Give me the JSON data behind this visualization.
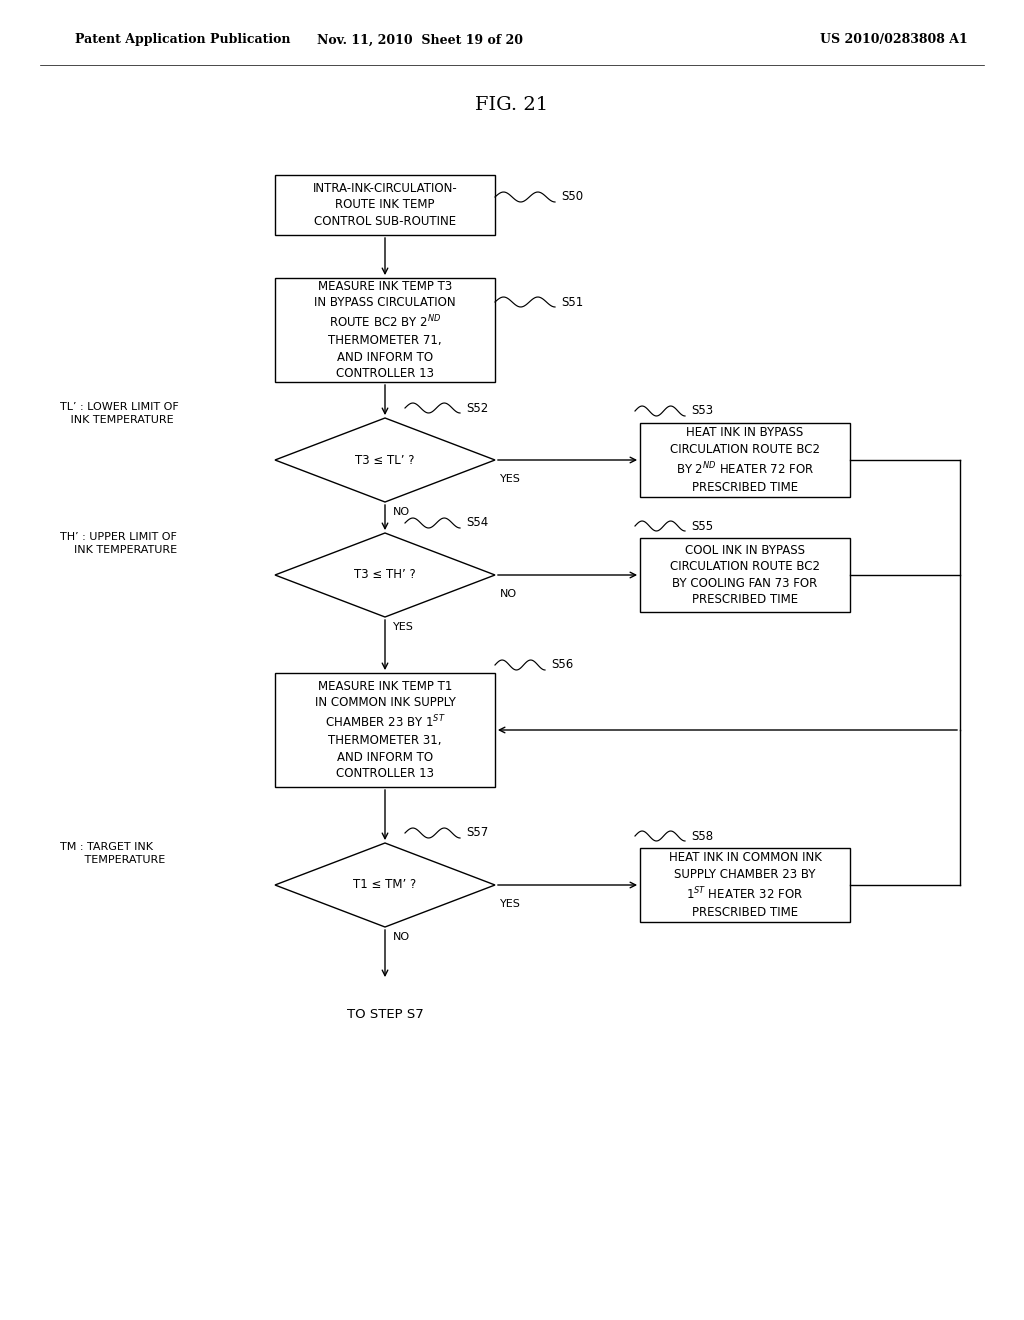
{
  "title": "FIG. 21",
  "header_left": "Patent Application Publication",
  "header_center": "Nov. 11, 2010  Sheet 19 of 20",
  "header_right": "US 2010/0283808 A1",
  "bg_color": "#ffffff",
  "s50_text": "INTRA-INK-CIRCULATION-\nROUTE INK TEMP\nCONTROL SUB-ROUTINE",
  "s51_text": "MEASURE INK TEMP T3\nIN BYPASS CIRCULATION\nROUTE BC2 BY 2$^{ND}$\nTHERMOMETER 71,\nAND INFORM TO\nCONTROLLER 13",
  "s52_text": "T3 ≤ TL’ ?",
  "s53_text": "HEAT INK IN BYPASS\nCIRCULATION ROUTE BC2\nBY 2$^{ND}$ HEATER 72 FOR\nPRESCRIBED TIME",
  "s54_text": "T3 ≤ TH’ ?",
  "s55_text": "COOL INK IN BYPASS\nCIRCULATION ROUTE BC2\nBY COOLING FAN 73 FOR\nPRESCRIBED TIME",
  "s56_text": "MEASURE INK TEMP T1\nIN COMMON INK SUPPLY\nCHAMBER 23 BY 1$^{ST}$\nTHERMOMETER 31,\nAND INFORM TO\nCONTROLLER 13",
  "s57_text": "T1 ≤ TM’ ?",
  "s58_text": "HEAT INK IN COMMON INK\nSUPPLY CHAMBER 23 BY\n1$^{ST}$ HEATER 32 FOR\nPRESCRIBED TIME",
  "tl_text": "TL’ : LOWER LIMIT OF\n   INK TEMPERATURE",
  "th_text": "TH’ : UPPER LIMIT OF\n    INK TEMPERATURE",
  "tm_text": "TM : TARGET INK\n       TEMPERATURE",
  "end_text": "TO STEP S7"
}
